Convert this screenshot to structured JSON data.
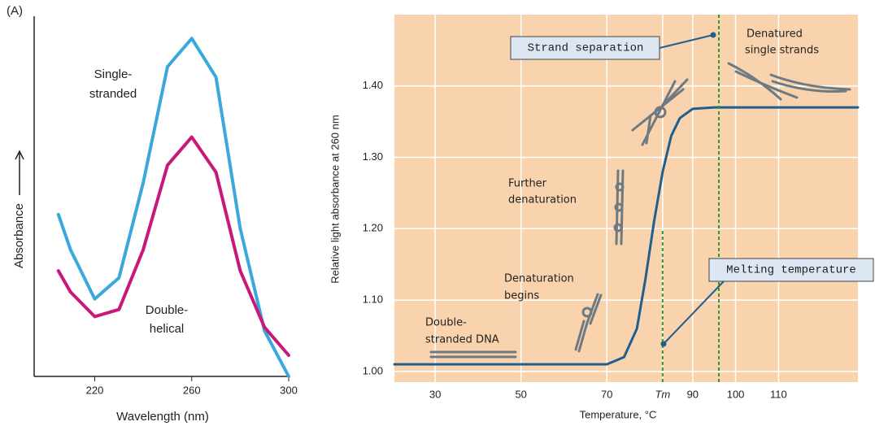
{
  "chart_data": [
    {
      "type": "line",
      "label": "(A)",
      "x_label": "Wavelength (nm)",
      "y_label": "Absorbance",
      "x": [
        205,
        210,
        220,
        230,
        240,
        250,
        260,
        270,
        280,
        290,
        300
      ],
      "series": [
        {
          "name_lines": [
            "Single-",
            "stranded"
          ],
          "color": "#3aa8dc",
          "values": [
            0.46,
            0.36,
            0.22,
            0.28,
            0.55,
            0.88,
            0.96,
            0.85,
            0.42,
            0.13,
            0.0
          ]
        },
        {
          "name_lines": [
            "Double-",
            "helical"
          ],
          "color": "#c8197a",
          "values": [
            0.3,
            0.24,
            0.17,
            0.19,
            0.36,
            0.6,
            0.68,
            0.58,
            0.3,
            0.14,
            0.06
          ]
        }
      ],
      "xlim": [
        195,
        300
      ],
      "xticks": [
        220,
        260,
        300
      ],
      "ylim": [
        0,
        1
      ],
      "grid": false
    },
    {
      "type": "line",
      "x_label": "Temperature, °C",
      "y_label": "Relative light absorbance at 260 nm",
      "x": [
        20.5,
        70,
        74,
        77,
        79,
        81,
        83,
        85,
        87,
        90,
        95,
        128.5
      ],
      "series": [
        {
          "color": "#1f5f8f",
          "values": [
            1.01,
            1.01,
            1.02,
            1.06,
            1.13,
            1.21,
            1.28,
            1.33,
            1.355,
            1.368,
            1.37,
            1.37
          ]
        }
      ],
      "xlim": [
        20.5,
        128.5
      ],
      "xticks": [
        30,
        50,
        70,
        {
          "value": 83,
          "label": "Tm"
        },
        90,
        100,
        110
      ],
      "ylim": [
        0.985,
        1.5
      ],
      "yticks": [
        {
          "value": 1.0,
          "label": "1.00"
        },
        {
          "value": 1.1,
          "label": "1.10"
        },
        {
          "value": 1.2,
          "label": "1.20"
        },
        {
          "value": 1.3,
          "label": "1.30"
        },
        {
          "value": 1.4,
          "label": "1.40"
        }
      ],
      "grid": true,
      "background": "#f8d3ad",
      "vlines": [
        {
          "x": 83,
          "to": 1.2
        },
        {
          "x": 96.1,
          "to": 1.5
        }
      ],
      "annotations": {
        "strand_separation": "Strand separation",
        "melting_temperature": "Melting temperature",
        "denatured": [
          "Denatured",
          "single strands"
        ],
        "further": [
          "Further",
          "denaturation"
        ],
        "begins": [
          "Denaturation",
          "begins"
        ],
        "double": [
          "Double-",
          "stranded DNA"
        ]
      }
    }
  ]
}
